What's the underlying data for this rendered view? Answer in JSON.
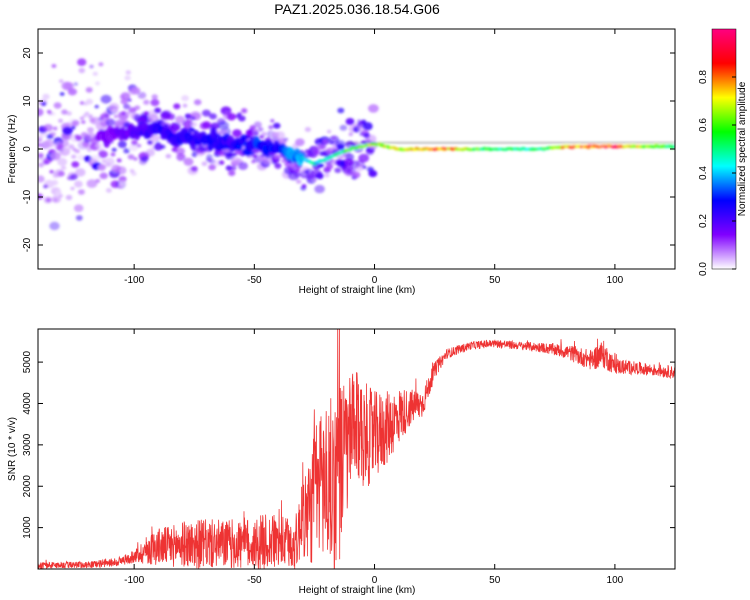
{
  "chart_data": [
    {
      "type": "heatmap",
      "title": "PAZ1.2025.036.18.54.G06",
      "xlabel": "Height of straight line (km)",
      "ylabel": "Frequency (Hz)",
      "xlim": [
        -140,
        125
      ],
      "ylim": [
        -25,
        25
      ],
      "x_ticks": [
        -100,
        -50,
        0,
        50,
        100
      ],
      "y_ticks": [
        -20,
        -10,
        0,
        10,
        20
      ],
      "colorbar": {
        "label": "Normalized spectral amplitude",
        "range": [
          0,
          1
        ],
        "ticks": [
          "0.0",
          "0.2",
          "0.4",
          "0.6",
          "0.8"
        ],
        "colormap": [
          "#ffffff",
          "#8000ff",
          "#0000ff",
          "#00ffff",
          "#00ff00",
          "#ffff00",
          "#ff0000",
          "#ff0080"
        ]
      },
      "ridge": {
        "x": [
          -140,
          -110,
          -100,
          -90,
          -80,
          -70,
          -60,
          -50,
          -40,
          -35,
          -30,
          -25,
          -20,
          -15,
          -10,
          -5,
          0,
          10,
          20,
          30,
          40,
          50,
          60,
          70,
          80,
          90,
          100,
          110,
          125
        ],
        "freq": [
          0,
          3,
          4,
          4,
          2,
          2,
          1,
          1,
          0,
          -1,
          -2,
          -3,
          -2,
          -1,
          0,
          0.5,
          1,
          0,
          0,
          0,
          0,
          0,
          0,
          0,
          0.5,
          0.5,
          0.5,
          0.5,
          0.5
        ],
        "amplitude": [
          0.05,
          0.15,
          0.2,
          0.25,
          0.25,
          0.25,
          0.25,
          0.3,
          0.3,
          0.35,
          0.45,
          0.45,
          0.5,
          0.55,
          0.6,
          0.65,
          0.7,
          0.75,
          0.8,
          0.85,
          0.65,
          0.55,
          0.5,
          0.55,
          0.8,
          0.9,
          0.9,
          0.7,
          0.5
        ]
      }
    },
    {
      "type": "line",
      "xlabel": "Height of straight line (km)",
      "ylabel": "SNR (10 * v/v)",
      "xlim": [
        -140,
        125
      ],
      "ylim": [
        0,
        5800
      ],
      "x_ticks": [
        -100,
        -50,
        0,
        50,
        100
      ],
      "y_ticks": [
        1000,
        2000,
        3000,
        4000,
        5000
      ],
      "color": "#ee3333",
      "series": [
        {
          "x": [
            -140,
            -130,
            -120,
            -110,
            -105,
            -100,
            -95,
            -90,
            -85,
            -80,
            -75,
            -70,
            -65,
            -60,
            -55,
            -50,
            -45,
            -40,
            -35,
            -32,
            -30,
            -28,
            -25,
            -22,
            -20,
            -18,
            -15,
            -12,
            -10,
            -8,
            -5,
            -2,
            0,
            5,
            10,
            15,
            20,
            25,
            30,
            40,
            50,
            60,
            70,
            80,
            90,
            95,
            100,
            110,
            125
          ],
          "y": [
            80,
            100,
            100,
            150,
            200,
            300,
            450,
            550,
            550,
            600,
            600,
            600,
            600,
            600,
            600,
            600,
            650,
            650,
            600,
            700,
            1500,
            1200,
            1800,
            2200,
            2100,
            2000,
            2300,
            2800,
            3200,
            3400,
            3300,
            3200,
            3200,
            3400,
            3700,
            3900,
            4000,
            4800,
            5200,
            5400,
            5450,
            5400,
            5350,
            5250,
            5050,
            5200,
            4900,
            4850,
            4750
          ],
          "amplitude": [
            80,
            80,
            80,
            100,
            120,
            150,
            350,
            450,
            500,
            550,
            600,
            600,
            600,
            600,
            650,
            650,
            700,
            650,
            650,
            700,
            1100,
            1300,
            1600,
            1900,
            2000,
            2200,
            2300,
            1800,
            1500,
            1400,
            1300,
            1200,
            1100,
            900,
            700,
            450,
            350,
            200,
            120,
            100,
            100,
            100,
            120,
            180,
            250,
            350,
            200,
            150,
            150
          ]
        }
      ]
    }
  ]
}
